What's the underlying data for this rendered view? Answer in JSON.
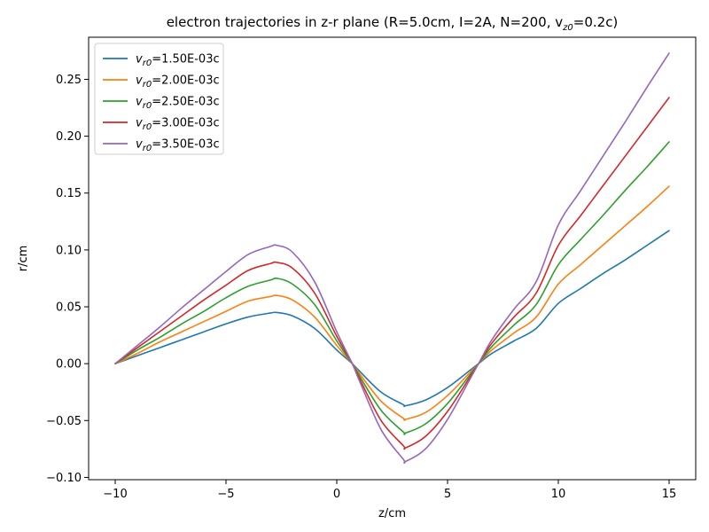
{
  "chart_data": {
    "type": "line",
    "title": "electron trajectories in z-r plane (R=5.0cm, I=2A, N=200, v",
    "title_sub": "z0",
    "title_tail": "=0.2c)",
    "xlabel": "z/cm",
    "ylabel": "r/cm",
    "xlim": [
      -11.2,
      16.2
    ],
    "ylim": [
      -0.102,
      0.287
    ],
    "x_ticks": [
      -10,
      -5,
      0,
      5,
      10,
      15
    ],
    "x_tick_labels": [
      "−10",
      "−5",
      "0",
      "5",
      "10",
      "15"
    ],
    "y_ticks": [
      -0.1,
      -0.05,
      0.0,
      0.05,
      0.1,
      0.15,
      0.2,
      0.25
    ],
    "y_tick_labels": [
      "−0.10",
      "−0.05",
      "0.00",
      "0.05",
      "0.10",
      "0.15",
      "0.20",
      "0.25"
    ],
    "grid": false,
    "legend_position": "top-left",
    "x": [
      -10,
      -9,
      -8,
      -7,
      -6,
      -5,
      -4,
      -3,
      -2.7,
      -2,
      -1,
      0,
      0.7,
      1,
      2,
      3,
      3.1,
      4,
      5,
      6,
      6.4,
      7,
      8,
      9,
      10,
      11,
      12,
      13,
      14,
      15
    ],
    "series": [
      {
        "name_prefix": "v",
        "name_sub": "r0",
        "name_value": "=1.50E-03c",
        "color": "#1f77b4",
        "values": [
          0,
          0.007,
          0.014,
          0.021,
          0.028,
          0.035,
          0.041,
          0.0445,
          0.045,
          0.042,
          0.031,
          0.012,
          0,
          -0.006,
          -0.025,
          -0.036,
          -0.037,
          -0.032,
          -0.021,
          -0.006,
          0,
          0.009,
          0.02,
          0.031,
          0.053,
          0.066,
          0.079,
          0.091,
          0.104,
          0.117
        ]
      },
      {
        "name_prefix": "v",
        "name_sub": "r0",
        "name_value": "=2.00E-03c",
        "color": "#ff7f0e",
        "values": [
          0,
          0.009,
          0.019,
          0.028,
          0.037,
          0.046,
          0.055,
          0.059,
          0.06,
          0.056,
          0.041,
          0.016,
          0,
          -0.008,
          -0.033,
          -0.048,
          -0.049,
          -0.043,
          -0.028,
          -0.008,
          0,
          0.012,
          0.027,
          0.041,
          0.07,
          0.087,
          0.104,
          0.121,
          0.138,
          0.156
        ]
      },
      {
        "name_prefix": "v",
        "name_sub": "r0",
        "name_value": "=2.50E-03c",
        "color": "#2ca02c",
        "values": [
          0,
          0.012,
          0.023,
          0.035,
          0.046,
          0.058,
          0.068,
          0.0735,
          0.075,
          0.07,
          0.052,
          0.02,
          0,
          -0.01,
          -0.041,
          -0.06,
          -0.061,
          -0.053,
          -0.035,
          -0.01,
          0,
          0.015,
          0.034,
          0.052,
          0.087,
          0.109,
          0.13,
          0.152,
          0.173,
          0.195
        ]
      },
      {
        "name_prefix": "v",
        "name_sub": "r0",
        "name_value": "=3.00E-03c",
        "color": "#d62728",
        "values": [
          0,
          0.014,
          0.028,
          0.042,
          0.056,
          0.069,
          0.082,
          0.088,
          0.089,
          0.084,
          0.062,
          0.024,
          0,
          -0.012,
          -0.05,
          -0.072,
          -0.074,
          -0.064,
          -0.042,
          -0.012,
          0,
          0.018,
          0.041,
          0.062,
          0.104,
          0.13,
          0.156,
          0.182,
          0.208,
          0.234
        ]
      },
      {
        "name_prefix": "v",
        "name_sub": "r0",
        "name_value": "=3.50E-03c",
        "color": "#9467bd",
        "values": [
          0,
          0.016,
          0.032,
          0.049,
          0.065,
          0.081,
          0.096,
          0.103,
          0.104,
          0.098,
          0.072,
          0.028,
          0,
          -0.014,
          -0.058,
          -0.084,
          -0.086,
          -0.075,
          -0.049,
          -0.014,
          0,
          0.021,
          0.048,
          0.072,
          0.122,
          0.152,
          0.182,
          0.212,
          0.243,
          0.273
        ]
      }
    ]
  }
}
